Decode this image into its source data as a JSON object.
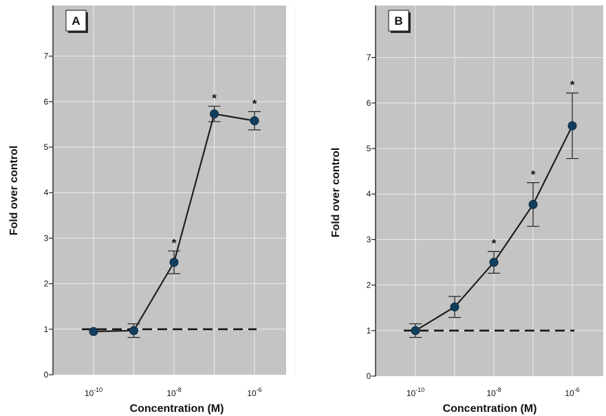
{
  "chart_data": [
    {
      "type": "line",
      "panel_label": "A",
      "xlabel": "Concentration (M)",
      "ylabel": "Fold over control",
      "x_scale": "log",
      "x_ticks": [
        {
          "base": "10",
          "exp": "-10"
        },
        {
          "base": "10",
          "exp": "-8"
        },
        {
          "base": "10",
          "exp": "-6"
        }
      ],
      "y_ticks": [
        "0",
        "1",
        "2",
        "3",
        "4",
        "5",
        "6",
        "7"
      ],
      "ylim": [
        0,
        8
      ],
      "grid": true,
      "baseline": 1,
      "series": [
        {
          "x": [
            1e-10,
            1e-09,
            1e-08,
            1e-07,
            1e-06
          ],
          "y": [
            0.95,
            0.97,
            2.47,
            5.73,
            5.58
          ],
          "err": [
            0.0,
            0.15,
            0.25,
            0.17,
            0.2
          ],
          "significant": [
            false,
            false,
            true,
            true,
            true
          ]
        }
      ]
    },
    {
      "type": "line",
      "panel_label": "B",
      "xlabel": "Concentration (M)",
      "ylabel": "Fold over control",
      "x_scale": "log",
      "x_ticks": [
        {
          "base": "10",
          "exp": "-10"
        },
        {
          "base": "10",
          "exp": "-8"
        },
        {
          "base": "10",
          "exp": "-6"
        }
      ],
      "y_ticks": [
        "0",
        "1",
        "2",
        "3",
        "4",
        "5",
        "6",
        "7"
      ],
      "ylim": [
        0,
        8
      ],
      "grid": true,
      "baseline": 1,
      "series": [
        {
          "x": [
            1e-10,
            1e-09,
            1e-08,
            1e-07,
            1e-06
          ],
          "y": [
            1.0,
            1.52,
            2.5,
            3.77,
            5.5
          ],
          "err": [
            0.15,
            0.23,
            0.24,
            0.48,
            0.72
          ],
          "significant": [
            false,
            false,
            true,
            true,
            true
          ]
        }
      ]
    }
  ],
  "colors": {
    "plot_background": "#c4c4c4",
    "grid": "#ececec",
    "marker": "#123e5e",
    "line": "#1f1f1f"
  }
}
